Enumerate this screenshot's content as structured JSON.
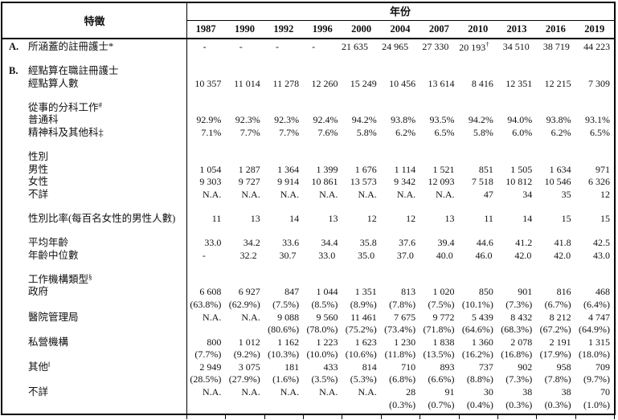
{
  "table": {
    "header": {
      "feature_label": "特徵",
      "year_label": "年份",
      "years": [
        "1987",
        "1990",
        "1992",
        "1996",
        "2000",
        "2004",
        "2007",
        "2010",
        "2013",
        "2016",
        "2019"
      ]
    },
    "rows": [
      {
        "type": "data",
        "prefix": "A.",
        "label": "所涵蓋的註冊護士*",
        "values": [
          "-",
          "-",
          "-",
          "-",
          "21 635",
          "24 965",
          "27 330",
          "20 193†",
          "34 510",
          "38 719",
          "44 223"
        ]
      },
      {
        "type": "spacer"
      },
      {
        "type": "section",
        "prefix": "B.",
        "label": "經點算在職註冊護士"
      },
      {
        "type": "data",
        "label": "經點算人數",
        "values": [
          "10 357",
          "11 014",
          "11 278",
          "12 260",
          "15 249",
          "10 456",
          "13 614",
          "8 416",
          "12 351",
          "12 215",
          "7 309"
        ]
      },
      {
        "type": "spacer"
      },
      {
        "type": "section",
        "label": "從事的分科工作",
        "sup": "#"
      },
      {
        "type": "data",
        "label": "普通科",
        "values": [
          "92.9%",
          "92.3%",
          "92.3%",
          "92.4%",
          "94.2%",
          "93.8%",
          "93.5%",
          "94.2%",
          "94.0%",
          "93.8%",
          "93.1%"
        ]
      },
      {
        "type": "data",
        "label": "精神科及其他科‡",
        "values": [
          "7.1%",
          "7.7%",
          "7.7%",
          "7.6%",
          "5.8%",
          "6.2%",
          "6.5%",
          "5.8%",
          "6.0%",
          "6.2%",
          "6.5%"
        ]
      },
      {
        "type": "spacer"
      },
      {
        "type": "section",
        "label": "性別"
      },
      {
        "type": "data",
        "label": "男性",
        "values": [
          "1 054",
          "1 287",
          "1 364",
          "1 399",
          "1 676",
          "1 114",
          "1 521",
          "851",
          "1 505",
          "1 634",
          "971"
        ]
      },
      {
        "type": "data",
        "label": "女性",
        "values": [
          "9 303",
          "9 727",
          "9 914",
          "10 861",
          "13 573",
          "9 342",
          "12 093",
          "7 518",
          "10 812",
          "10 546",
          "6 326"
        ]
      },
      {
        "type": "data",
        "label": "不詳",
        "values": [
          "N.A.",
          "N.A.",
          "N.A.",
          "N.A.",
          "N.A.",
          "N.A.",
          "N.A.",
          "47",
          "34",
          "35",
          "12"
        ]
      },
      {
        "type": "spacer"
      },
      {
        "type": "data",
        "label": "性別比率(每百名女性的男性人數)",
        "values": [
          "11",
          "13",
          "14",
          "13",
          "12",
          "12",
          "13",
          "11",
          "14",
          "15",
          "15"
        ]
      },
      {
        "type": "spacer"
      },
      {
        "type": "data",
        "label": "平均年齡",
        "values": [
          "33.0",
          "34.2",
          "33.6",
          "34.4",
          "35.8",
          "37.6",
          "39.4",
          "44.6",
          "41.2",
          "41.8",
          "42.5"
        ]
      },
      {
        "type": "data",
        "label": "年齡中位數",
        "values": [
          "-",
          "32.2",
          "30.7",
          "33.0",
          "35.0",
          "37.0",
          "40.0",
          "46.0",
          "42.0",
          "42.0",
          "43.0"
        ]
      },
      {
        "type": "spacer"
      },
      {
        "type": "section",
        "label": "工作機構類型",
        "sup": "§"
      },
      {
        "type": "data2",
        "label": "政府",
        "values": [
          "6 608",
          "6 927",
          "847",
          "1 044",
          "1 351",
          "813",
          "1 020",
          "850",
          "901",
          "816",
          "468"
        ],
        "values2": [
          "(63.8%)",
          "(62.9%)",
          "(7.5%)",
          "(8.5%)",
          "(8.9%)",
          "(7.8%)",
          "(7.5%)",
          "(10.1%)",
          "(7.3%)",
          "(6.7%)",
          "(6.4%)"
        ]
      },
      {
        "type": "data2",
        "label": "醫院管理局",
        "values": [
          "N.A.",
          "N.A.",
          "9 088",
          "9 560",
          "11 461",
          "7 675",
          "9 772",
          "5 439",
          "8 432",
          "8 212",
          "4 747"
        ],
        "values2": [
          "",
          "",
          "(80.6%)",
          "(78.0%)",
          "(75.2%)",
          "(73.4%)",
          "(71.8%)",
          "(64.6%)",
          "(68.3%)",
          "(67.2%)",
          "(64.9%)"
        ]
      },
      {
        "type": "data2",
        "label": "私營機構",
        "values": [
          "800",
          "1 012",
          "1 162",
          "1 223",
          "1 623",
          "1 230",
          "1 838",
          "1 360",
          "2 078",
          "2 191",
          "1 315"
        ],
        "values2": [
          "(7.7%)",
          "(9.2%)",
          "(10.3%)",
          "(10.0%)",
          "(10.6%)",
          "(11.8%)",
          "(13.5%)",
          "(16.2%)",
          "(16.8%)",
          "(17.9%)",
          "(18.0%)"
        ]
      },
      {
        "type": "data2",
        "label": "其他",
        "sup": "‖",
        "values": [
          "2 949",
          "3 075",
          "181",
          "433",
          "814",
          "710",
          "893",
          "737",
          "902",
          "958",
          "709"
        ],
        "values2": [
          "(28.5%)",
          "(27.9%)",
          "(1.6%)",
          "(3.5%)",
          "(5.3%)",
          "(6.8%)",
          "(6.6%)",
          "(8.8%)",
          "(7.3%)",
          "(7.8%)",
          "(9.7%)"
        ]
      },
      {
        "type": "data2",
        "label": "不詳",
        "values": [
          "N.A.",
          "N.A.",
          "N.A.",
          "N.A.",
          "N.A.",
          "28",
          "91",
          "30",
          "38",
          "38",
          "70"
        ],
        "values2": [
          "",
          "",
          "",
          "",
          "",
          "(0.3%)",
          "(0.7%)",
          "(0.4%)",
          "(0.3%)",
          "(0.3%)",
          "(1.0%)"
        ]
      }
    ]
  }
}
